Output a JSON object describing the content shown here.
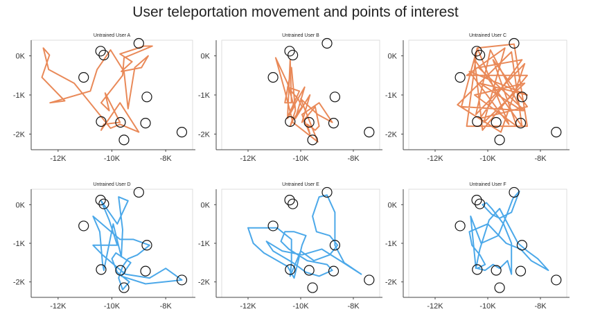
{
  "title": "User teleportation movement and points of interest",
  "colors": {
    "orange": "#E8834F",
    "blue": "#41A3E8",
    "poi_stroke": "#111111",
    "axis": "#444444"
  },
  "chart_data": [
    {
      "type": "line",
      "title": "Untrained User A",
      "color": "orange",
      "xlim": [
        -13000,
        -7000
      ],
      "ylim": [
        -2400,
        400
      ],
      "xticks": [
        -12000,
        -10000,
        -8000
      ],
      "xtick_labels": [
        "-12K",
        "-10K",
        "-8K"
      ],
      "yticks": [
        0,
        -1000,
        -2000
      ],
      "ytick_labels": [
        "0K",
        "-1K",
        "-2K"
      ],
      "poi": [
        [
          -10420,
          120
        ],
        [
          -10300,
          20
        ],
        [
          -9000,
          320
        ],
        [
          -11050,
          -550
        ],
        [
          -8700,
          -1050
        ],
        [
          -10400,
          -1680
        ],
        [
          -9680,
          -1700
        ],
        [
          -8750,
          -1720
        ],
        [
          -7400,
          -1950
        ],
        [
          -9550,
          -2150
        ]
      ],
      "path": [
        [
          -12350,
          -350
        ],
        [
          -12550,
          200
        ],
        [
          -12320,
          20
        ],
        [
          -12600,
          -550
        ],
        [
          -11750,
          -1150
        ],
        [
          -12300,
          -1200
        ],
        [
          -10800,
          -900
        ],
        [
          -10550,
          -350
        ],
        [
          -10050,
          150
        ],
        [
          -9550,
          -400
        ],
        [
          -9400,
          -1350
        ],
        [
          -9150,
          -300
        ],
        [
          -8650,
          0
        ],
        [
          -8900,
          -300
        ],
        [
          -9650,
          -400
        ],
        [
          -9250,
          -150
        ],
        [
          -9700,
          50
        ],
        [
          -8800,
          250
        ],
        [
          -8500,
          250
        ],
        [
          -9550,
          -50
        ],
        [
          -9600,
          -500
        ],
        [
          -10400,
          -1200
        ],
        [
          -10100,
          -1400
        ],
        [
          -10250,
          -950
        ],
        [
          -9700,
          -1700
        ],
        [
          -10300,
          -1750
        ],
        [
          -10400,
          -1900
        ],
        [
          -9700,
          -1200
        ],
        [
          -9000,
          -1950
        ],
        [
          -9700,
          -1750
        ],
        [
          -10050,
          -1850
        ],
        [
          -11400,
          -700
        ],
        [
          -12350,
          -350
        ]
      ]
    },
    {
      "type": "line",
      "title": "Untrained User B",
      "color": "orange",
      "xlim": [
        -13000,
        -7000
      ],
      "ylim": [
        -2400,
        400
      ],
      "xticks": [
        -12000,
        -10000,
        -8000
      ],
      "xtick_labels": [
        "-12K",
        "-10K",
        "-8K"
      ],
      "yticks": [
        0,
        -1000,
        -2000
      ],
      "ytick_labels": [
        "0K",
        "-1K",
        "-2K"
      ],
      "poi": [
        [
          -10420,
          120
        ],
        [
          -10300,
          20
        ],
        [
          -9000,
          320
        ],
        [
          -11050,
          -550
        ],
        [
          -8700,
          -1050
        ],
        [
          -10400,
          -1680
        ],
        [
          -9680,
          -1700
        ],
        [
          -8750,
          -1720
        ],
        [
          -7400,
          -1950
        ],
        [
          -9550,
          -2150
        ]
      ],
      "path": [
        [
          -10950,
          -50
        ],
        [
          -10500,
          -700
        ],
        [
          -10250,
          -1300
        ],
        [
          -10500,
          -1600
        ],
        [
          -10400,
          -100
        ],
        [
          -10350,
          -1200
        ],
        [
          -10600,
          -1200
        ],
        [
          -10350,
          -300
        ],
        [
          -10200,
          -1400
        ],
        [
          -10400,
          -1800
        ],
        [
          -10300,
          -1650
        ],
        [
          -9950,
          -1300
        ],
        [
          -10100,
          -1100
        ],
        [
          -10500,
          -800
        ],
        [
          -10050,
          -900
        ],
        [
          -10450,
          -1500
        ],
        [
          -9850,
          -800
        ],
        [
          -10200,
          -1600
        ],
        [
          -9650,
          -1000
        ],
        [
          -9950,
          -1700
        ],
        [
          -9450,
          -1300
        ],
        [
          -9300,
          -1800
        ],
        [
          -9450,
          -1900
        ],
        [
          -9750,
          -1750
        ],
        [
          -9650,
          -2000
        ],
        [
          -9950,
          -1500
        ],
        [
          -9300,
          -1200
        ],
        [
          -8800,
          -1700
        ],
        [
          -9350,
          -1500
        ],
        [
          -10000,
          -1100
        ],
        [
          -9350,
          -2200
        ],
        [
          -10300,
          -1700
        ],
        [
          -10450,
          -1300
        ],
        [
          -10600,
          -900
        ],
        [
          -10950,
          -50
        ]
      ]
    },
    {
      "type": "line",
      "title": "Untrained User C",
      "color": "orange",
      "xlim": [
        -13000,
        -7000
      ],
      "ylim": [
        -2400,
        400
      ],
      "xticks": [
        -12000,
        -10000,
        -8000
      ],
      "xtick_labels": [
        "-12K",
        "-10K",
        "-8K"
      ],
      "yticks": [
        0,
        -1000,
        -2000
      ],
      "ytick_labels": [
        "0K",
        "-1K",
        "-2K"
      ],
      "poi": [
        [
          -10420,
          120
        ],
        [
          -10300,
          20
        ],
        [
          -9000,
          320
        ],
        [
          -11050,
          -550
        ],
        [
          -8700,
          -1050
        ],
        [
          -10400,
          -1680
        ],
        [
          -9680,
          -1700
        ],
        [
          -8750,
          -1720
        ],
        [
          -7400,
          -1950
        ],
        [
          -9550,
          -2150
        ]
      ],
      "path": [
        [
          -10400,
          200
        ],
        [
          -10800,
          -1800
        ],
        [
          -8500,
          -1800
        ],
        [
          -9000,
          300
        ],
        [
          -10400,
          200
        ],
        [
          -11000,
          -1300
        ],
        [
          -8600,
          -1400
        ],
        [
          -10350,
          -300
        ],
        [
          -8700,
          -100
        ],
        [
          -10300,
          -1600
        ],
        [
          -8500,
          -1300
        ],
        [
          -9800,
          -100
        ],
        [
          -8900,
          -1800
        ],
        [
          -10500,
          -1000
        ],
        [
          -8600,
          -700
        ],
        [
          -10150,
          -1700
        ],
        [
          -9350,
          200
        ],
        [
          -10800,
          -500
        ],
        [
          -8500,
          -500
        ],
        [
          -10200,
          -1900
        ],
        [
          -10500,
          -100
        ],
        [
          -8700,
          -1800
        ],
        [
          -9100,
          100
        ],
        [
          -11150,
          -1250
        ],
        [
          -9500,
          -1950
        ],
        [
          -8600,
          -200
        ],
        [
          -10450,
          -1500
        ],
        [
          -9900,
          150
        ],
        [
          -8700,
          -1400
        ],
        [
          -10300,
          -700
        ],
        [
          -8500,
          -1000
        ],
        [
          -10700,
          -400
        ],
        [
          -9200,
          -1750
        ],
        [
          -10400,
          200
        ]
      ]
    },
    {
      "type": "line",
      "title": "Untrained User D",
      "color": "blue",
      "xlim": [
        -13000,
        -7000
      ],
      "ylim": [
        -2400,
        400
      ],
      "xticks": [
        -12000,
        -10000,
        -8000
      ],
      "xtick_labels": [
        "-12K",
        "-10K",
        "-8K"
      ],
      "yticks": [
        0,
        -1000,
        -2000
      ],
      "ytick_labels": [
        "0K",
        "-1K",
        "-2K"
      ],
      "poi": [
        [
          -10420,
          120
        ],
        [
          -10300,
          20
        ],
        [
          -9000,
          320
        ],
        [
          -11050,
          -550
        ],
        [
          -8700,
          -1050
        ],
        [
          -10400,
          -1680
        ],
        [
          -9680,
          -1700
        ],
        [
          -8750,
          -1720
        ],
        [
          -7400,
          -1950
        ],
        [
          -9550,
          -2150
        ]
      ],
      "path": [
        [
          -10700,
          -300
        ],
        [
          -10450,
          -700
        ],
        [
          -10350,
          -1500
        ],
        [
          -10300,
          -1700
        ],
        [
          -9950,
          -500
        ],
        [
          -9650,
          -1350
        ],
        [
          -9600,
          -650
        ],
        [
          -9750,
          200
        ],
        [
          -9400,
          100
        ],
        [
          -9800,
          -500
        ],
        [
          -10400,
          100
        ],
        [
          -10100,
          -400
        ],
        [
          -9800,
          -1050
        ],
        [
          -10700,
          -1050
        ],
        [
          -10350,
          -1300
        ],
        [
          -9500,
          -1800
        ],
        [
          -8600,
          -1900
        ],
        [
          -8000,
          -1650
        ],
        [
          -7400,
          -1950
        ],
        [
          -8750,
          -2050
        ],
        [
          -9650,
          -1850
        ],
        [
          -9300,
          -1500
        ],
        [
          -9850,
          -1250
        ],
        [
          -10000,
          -1400
        ],
        [
          -9800,
          -1750
        ],
        [
          -9350,
          -2000
        ],
        [
          -9600,
          -2200
        ],
        [
          -9750,
          -1900
        ],
        [
          -9600,
          -1600
        ],
        [
          -9400,
          -1400
        ],
        [
          -9050,
          -1300
        ],
        [
          -8600,
          -1050
        ],
        [
          -9200,
          -900
        ],
        [
          -9700,
          -900
        ],
        [
          -10700,
          -300
        ]
      ]
    },
    {
      "type": "line",
      "title": "Untrained User E",
      "color": "blue",
      "xlim": [
        -13000,
        -7000
      ],
      "ylim": [
        -2400,
        400
      ],
      "xticks": [
        -12000,
        -10000,
        -8000
      ],
      "xtick_labels": [
        "-12K",
        "-10K",
        "-8K"
      ],
      "yticks": [
        0,
        -1000,
        -2000
      ],
      "ytick_labels": [
        "0K",
        "-1K",
        "-2K"
      ],
      "poi": [
        [
          -10420,
          120
        ],
        [
          -10300,
          20
        ],
        [
          -9000,
          320
        ],
        [
          -11050,
          -550
        ],
        [
          -8700,
          -1050
        ],
        [
          -10400,
          -1680
        ],
        [
          -9680,
          -1700
        ],
        [
          -8750,
          -1720
        ],
        [
          -7400,
          -1950
        ],
        [
          -9550,
          -2150
        ]
      ],
      "path": [
        [
          -12000,
          -600
        ],
        [
          -10900,
          -600
        ],
        [
          -10350,
          -900
        ],
        [
          -10350,
          -1500
        ],
        [
          -10400,
          -1850
        ],
        [
          -10000,
          -1200
        ],
        [
          -9500,
          -1450
        ],
        [
          -8900,
          -1300
        ],
        [
          -8600,
          -1050
        ],
        [
          -8900,
          -800
        ],
        [
          -9400,
          -700
        ],
        [
          -9550,
          -300
        ],
        [
          -9300,
          200
        ],
        [
          -9000,
          250
        ],
        [
          -8700,
          -200
        ],
        [
          -8700,
          -1050
        ],
        [
          -8350,
          -1500
        ],
        [
          -7700,
          -1800
        ],
        [
          -8500,
          -1450
        ],
        [
          -9200,
          -1150
        ],
        [
          -9950,
          -1300
        ],
        [
          -10700,
          -1200
        ],
        [
          -11300,
          -950
        ],
        [
          -11050,
          -1200
        ],
        [
          -10300,
          -1500
        ],
        [
          -9800,
          -1750
        ],
        [
          -9300,
          -1850
        ],
        [
          -8800,
          -1700
        ],
        [
          -9000,
          -1550
        ],
        [
          -9750,
          -1450
        ],
        [
          -10450,
          -1150
        ],
        [
          -10750,
          -950
        ],
        [
          -10600,
          -700
        ],
        [
          -10250,
          -700
        ],
        [
          -9800,
          -800
        ],
        [
          -9950,
          -1050
        ],
        [
          -10250,
          -1900
        ],
        [
          -10500,
          -1600
        ],
        [
          -11400,
          -1250
        ],
        [
          -11800,
          -1000
        ],
        [
          -12000,
          -600
        ]
      ]
    },
    {
      "type": "line",
      "title": "Untrained User F",
      "color": "blue",
      "xlim": [
        -13000,
        -7000
      ],
      "ylim": [
        -2400,
        400
      ],
      "xticks": [
        -12000,
        -10000,
        -8000
      ],
      "xtick_labels": [
        "-12K",
        "-10K",
        "-8K"
      ],
      "yticks": [
        0,
        -1000,
        -2000
      ],
      "ytick_labels": [
        "0K",
        "-1K",
        "-2K"
      ],
      "poi": [
        [
          -10420,
          120
        ],
        [
          -10300,
          20
        ],
        [
          -9000,
          320
        ],
        [
          -11050,
          -550
        ],
        [
          -8700,
          -1050
        ],
        [
          -10400,
          -1680
        ],
        [
          -9680,
          -1700
        ],
        [
          -8750,
          -1720
        ],
        [
          -7400,
          -1950
        ],
        [
          -9550,
          -2150
        ]
      ],
      "path": [
        [
          -10650,
          -300
        ],
        [
          -10450,
          -1650
        ],
        [
          -10300,
          -1150
        ],
        [
          -9950,
          -400
        ],
        [
          -9550,
          -100
        ],
        [
          -8850,
          -1000
        ],
        [
          -8500,
          -1200
        ],
        [
          -8100,
          -1400
        ],
        [
          -7700,
          -1700
        ],
        [
          -8350,
          -1450
        ],
        [
          -8750,
          -1150
        ],
        [
          -9300,
          -1000
        ],
        [
          -10000,
          -500
        ],
        [
          -10700,
          -700
        ],
        [
          -10600,
          -1050
        ],
        [
          -10300,
          -1300
        ],
        [
          -10100,
          -1550
        ],
        [
          -10400,
          -1650
        ],
        [
          -10100,
          -1700
        ],
        [
          -9800,
          -1550
        ],
        [
          -9550,
          -1650
        ],
        [
          -9250,
          -1450
        ],
        [
          -9100,
          -1800
        ],
        [
          -9100,
          -1000
        ],
        [
          -9400,
          -500
        ],
        [
          -9850,
          -100
        ],
        [
          -10050,
          50
        ],
        [
          -10200,
          0
        ],
        [
          -9850,
          -250
        ],
        [
          -9550,
          -350
        ],
        [
          -9100,
          -200
        ],
        [
          -8800,
          350
        ],
        [
          -9050,
          150
        ],
        [
          -9300,
          -300
        ],
        [
          -9600,
          -800
        ],
        [
          -10250,
          -1000
        ],
        [
          -10650,
          -300
        ]
      ]
    }
  ]
}
